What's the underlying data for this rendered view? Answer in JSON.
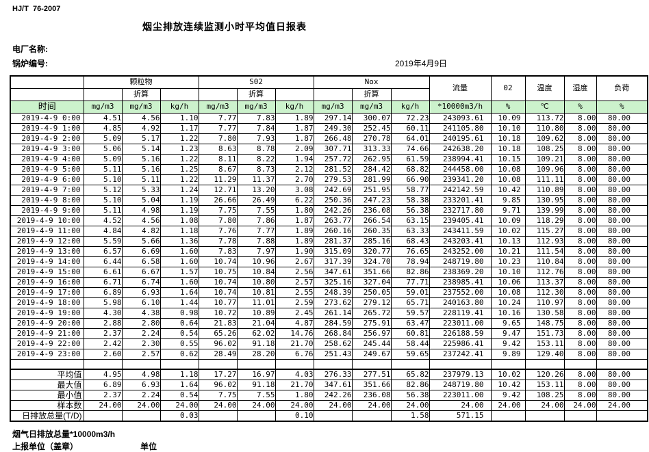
{
  "header": {
    "standard": "HJ/T  76-2007",
    "title": "烟尘排放连续监测小时平均值日报表",
    "plant_label": "电厂名称:",
    "boiler_label": "锅炉编号:",
    "date": "2019年4月9日"
  },
  "table": {
    "groups": {
      "pm": "颗粒物",
      "so2": "S02",
      "nox": "Nox",
      "flow": "流量",
      "o2": "02",
      "temp": "温度",
      "humidity": "湿度",
      "load": "负荷"
    },
    "converted_label": "折算",
    "time_label": "时间",
    "units": [
      "mg/m3",
      "mg/m3",
      "kg/h",
      "mg/m3",
      "mg/m3",
      "kg/h",
      "mg/m3",
      "mg/m3",
      "kg/h",
      "*10000m3/h",
      "%",
      "℃",
      "%",
      "%"
    ],
    "rows": [
      {
        "time": "2019-4-9 0:00",
        "values": [
          "4.51",
          "4.56",
          "1.10",
          "7.77",
          "7.83",
          "1.89",
          "297.14",
          "300.07",
          "72.23",
          "243093.61",
          "10.09",
          "113.72",
          "8.00",
          "80.00"
        ]
      },
      {
        "time": "2019-4-9 1:00",
        "values": [
          "4.85",
          "4.92",
          "1.17",
          "7.77",
          "7.84",
          "1.87",
          "249.30",
          "252.45",
          "60.11",
          "241105.80",
          "10.10",
          "110.80",
          "8.00",
          "80.00"
        ]
      },
      {
        "time": "2019-4-9 2:00",
        "values": [
          "5.09",
          "5.17",
          "1.22",
          "7.80",
          "7.93",
          "1.87",
          "266.48",
          "270.78",
          "64.01",
          "240195.61",
          "10.18",
          "109.62",
          "8.00",
          "80.00"
        ]
      },
      {
        "time": "2019-4-9 3:00",
        "values": [
          "5.06",
          "5.14",
          "1.23",
          "8.63",
          "8.78",
          "2.09",
          "307.71",
          "313.33",
          "74.66",
          "242638.20",
          "10.18",
          "108.25",
          "8.00",
          "80.00"
        ]
      },
      {
        "time": "2019-4-9 4:00",
        "values": [
          "5.09",
          "5.16",
          "1.22",
          "8.11",
          "8.22",
          "1.94",
          "257.72",
          "262.95",
          "61.59",
          "238994.41",
          "10.15",
          "109.21",
          "8.00",
          "80.00"
        ]
      },
      {
        "time": "2019-4-9 5:00",
        "values": [
          "5.11",
          "5.16",
          "1.25",
          "8.67",
          "8.73",
          "2.12",
          "281.52",
          "284.42",
          "68.82",
          "244458.00",
          "10.08",
          "109.96",
          "8.00",
          "80.00"
        ]
      },
      {
        "time": "2019-4-9 6:00",
        "values": [
          "5.10",
          "5.11",
          "1.22",
          "11.29",
          "11.37",
          "2.70",
          "279.53",
          "281.99",
          "66.90",
          "239341.20",
          "10.08",
          "111.11",
          "8.00",
          "80.00"
        ]
      },
      {
        "time": "2019-4-9 7:00",
        "values": [
          "5.12",
          "5.33",
          "1.24",
          "12.71",
          "13.20",
          "3.08",
          "242.69",
          "251.95",
          "58.77",
          "242142.59",
          "10.42",
          "110.89",
          "8.00",
          "80.00"
        ]
      },
      {
        "time": "2019-4-9 8:00",
        "values": [
          "5.10",
          "5.04",
          "1.19",
          "26.66",
          "26.49",
          "6.22",
          "250.36",
          "247.23",
          "58.38",
          "233201.41",
          "9.85",
          "130.95",
          "8.00",
          "80.00"
        ]
      },
      {
        "time": "2019-4-9 9:00",
        "values": [
          "5.11",
          "4.98",
          "1.19",
          "7.75",
          "7.55",
          "1.80",
          "242.26",
          "236.08",
          "56.38",
          "232717.80",
          "9.71",
          "139.99",
          "8.00",
          "80.00"
        ]
      },
      {
        "time": "2019-4-9 10:00",
        "values": [
          "4.52",
          "4.56",
          "1.08",
          "7.80",
          "7.86",
          "1.87",
          "263.77",
          "266.54",
          "63.15",
          "239405.41",
          "10.09",
          "118.29",
          "8.00",
          "80.00"
        ]
      },
      {
        "time": "2019-4-9 11:00",
        "values": [
          "4.84",
          "4.82",
          "1.18",
          "7.76",
          "7.77",
          "1.89",
          "260.16",
          "260.35",
          "63.33",
          "243411.59",
          "10.02",
          "115.27",
          "8.00",
          "80.00"
        ]
      },
      {
        "time": "2019-4-9 12:00",
        "values": [
          "5.59",
          "5.66",
          "1.36",
          "7.78",
          "7.88",
          "1.89",
          "281.37",
          "285.16",
          "68.43",
          "243203.41",
          "10.13",
          "112.93",
          "8.00",
          "80.00"
        ]
      },
      {
        "time": "2019-4-9 13:00",
        "values": [
          "6.57",
          "6.69",
          "1.60",
          "7.83",
          "7.97",
          "1.90",
          "315.09",
          "320.77",
          "76.65",
          "243252.00",
          "10.21",
          "111.54",
          "8.00",
          "80.00"
        ]
      },
      {
        "time": "2019-4-9 14:00",
        "values": [
          "6.44",
          "6.58",
          "1.60",
          "10.74",
          "10.96",
          "2.67",
          "317.39",
          "324.70",
          "78.94",
          "248719.80",
          "10.23",
          "110.84",
          "8.00",
          "80.00"
        ]
      },
      {
        "time": "2019-4-9 15:00",
        "values": [
          "6.61",
          "6.67",
          "1.57",
          "10.75",
          "10.84",
          "2.56",
          "347.61",
          "351.66",
          "82.86",
          "238369.20",
          "10.10",
          "112.76",
          "8.00",
          "80.00"
        ]
      },
      {
        "time": "2019-4-9 16:00",
        "values": [
          "6.71",
          "6.74",
          "1.60",
          "10.74",
          "10.80",
          "2.57",
          "325.16",
          "327.04",
          "77.71",
          "238985.41",
          "10.06",
          "113.37",
          "8.00",
          "80.00"
        ]
      },
      {
        "time": "2019-4-9 17:00",
        "values": [
          "6.89",
          "6.93",
          "1.64",
          "10.74",
          "10.81",
          "2.55",
          "248.39",
          "250.05",
          "59.01",
          "237552.00",
          "10.08",
          "112.30",
          "8.00",
          "80.00"
        ]
      },
      {
        "time": "2019-4-9 18:00",
        "values": [
          "5.98",
          "6.10",
          "1.44",
          "10.77",
          "11.01",
          "2.59",
          "273.62",
          "279.12",
          "65.71",
          "240163.80",
          "10.24",
          "110.97",
          "8.00",
          "80.00"
        ]
      },
      {
        "time": "2019-4-9 19:00",
        "values": [
          "4.30",
          "4.38",
          "0.98",
          "10.72",
          "10.89",
          "2.45",
          "261.14",
          "265.72",
          "59.57",
          "228119.41",
          "10.16",
          "130.58",
          "8.00",
          "80.00"
        ]
      },
      {
        "time": "2019-4-9 20:00",
        "values": [
          "2.88",
          "2.80",
          "0.64",
          "21.83",
          "21.04",
          "4.87",
          "284.59",
          "275.91",
          "63.47",
          "223011.00",
          "9.65",
          "148.75",
          "8.00",
          "80.00"
        ]
      },
      {
        "time": "2019-4-9 21:00",
        "values": [
          "2.37",
          "2.24",
          "0.54",
          "65.26",
          "62.02",
          "14.76",
          "268.84",
          "256.97",
          "60.81",
          "226188.59",
          "9.47",
          "151.73",
          "8.00",
          "80.00"
        ]
      },
      {
        "time": "2019-4-9 22:00",
        "values": [
          "2.42",
          "2.30",
          "0.55",
          "96.02",
          "91.18",
          "21.70",
          "258.62",
          "245.44",
          "58.44",
          "225986.41",
          "9.42",
          "153.11",
          "8.00",
          "80.00"
        ]
      },
      {
        "time": "2019-4-9 23:00",
        "values": [
          "2.60",
          "2.57",
          "0.62",
          "28.49",
          "28.20",
          "6.76",
          "251.43",
          "249.67",
          "59.65",
          "237242.41",
          "9.89",
          "129.40",
          "8.00",
          "80.00"
        ]
      }
    ],
    "summary": [
      {
        "label": "平均值",
        "values": [
          "4.95",
          "4.98",
          "1.18",
          "17.27",
          "16.97",
          "4.03",
          "276.33",
          "277.51",
          "65.82",
          "237979.13",
          "10.02",
          "120.26",
          "8.00",
          "80.00"
        ]
      },
      {
        "label": "最大值",
        "values": [
          "6.89",
          "6.93",
          "1.64",
          "96.02",
          "91.18",
          "21.70",
          "347.61",
          "351.66",
          "82.86",
          "248719.80",
          "10.42",
          "153.11",
          "8.00",
          "80.00"
        ]
      },
      {
        "label": "最小值",
        "values": [
          "2.37",
          "2.24",
          "0.54",
          "7.75",
          "7.55",
          "1.80",
          "242.26",
          "236.08",
          "56.38",
          "223011.00",
          "9.42",
          "108.25",
          "8.00",
          "80.00"
        ]
      },
      {
        "label": "样本数",
        "values": [
          "24.00",
          "24.00",
          "24.00",
          "24.00",
          "24.00",
          "24.00",
          "24.00",
          "24.00",
          "24.00",
          "24.00",
          "24.00",
          "24.00",
          "24.00",
          "24.00"
        ]
      },
      {
        "label": "日排放总量(T/D)",
        "values": [
          "",
          "",
          "0.03",
          "",
          "",
          "0.10",
          "",
          "",
          "1.58",
          "571.15",
          "",
          "",
          "",
          ""
        ]
      }
    ]
  },
  "footer": {
    "flue_total_label": "烟气日排放总量*10000m3/h",
    "report_unit_label": "上报单位（盖章）",
    "unit_label": "单位"
  },
  "colors": {
    "header_green": "#ccf2cc"
  }
}
